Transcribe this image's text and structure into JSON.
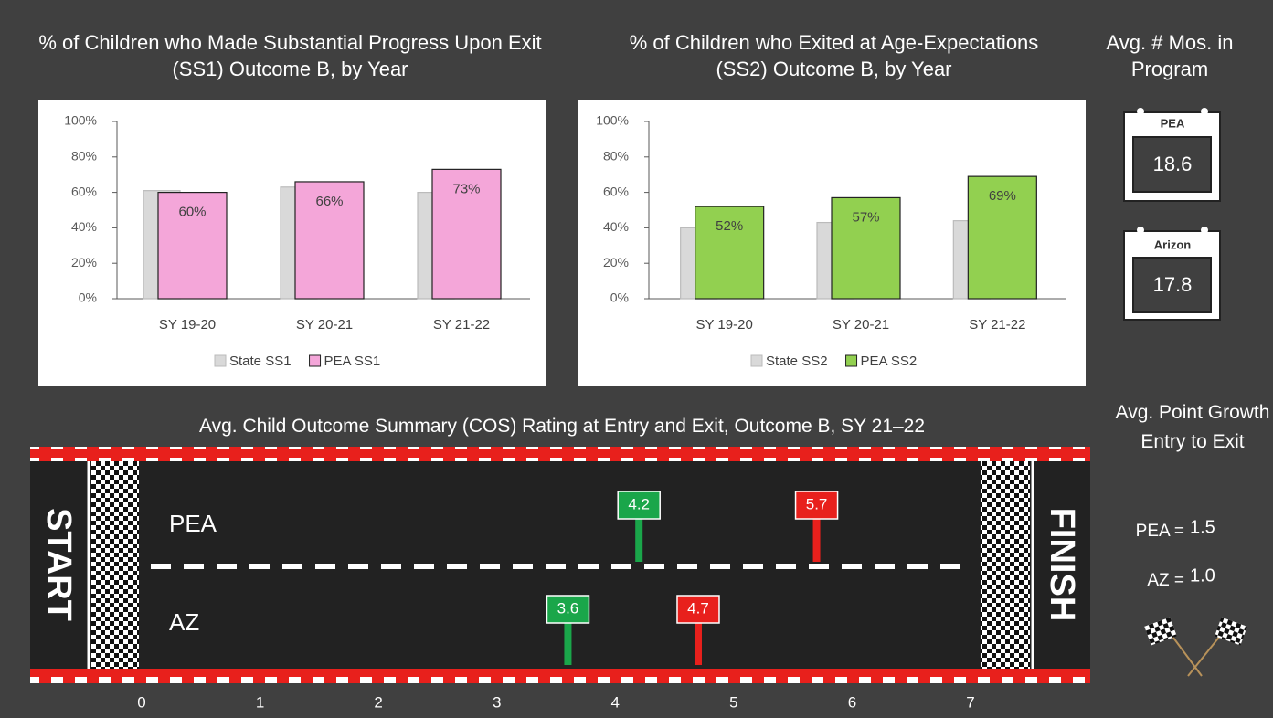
{
  "chart_data": [
    {
      "type": "bar",
      "title": "% of Children who Made Substantial Progress Upon Exit (SS1) Outcome B, by Year",
      "categories": [
        "SY 19-20",
        "SY 20-21",
        "SY 21-22"
      ],
      "series": [
        {
          "name": "State SS1",
          "color": "#d9d9d9",
          "values": [
            61,
            63,
            60
          ]
        },
        {
          "name": "PEA SS1",
          "color": "#f4a6d9",
          "values": [
            60,
            66,
            73
          ],
          "value_labels": [
            "60%",
            "66%",
            "73%"
          ]
        }
      ],
      "ylim": [
        0,
        100
      ],
      "yticks": [
        {
          "value": 0,
          "label": "0%"
        },
        {
          "value": 20,
          "label": "20%"
        },
        {
          "value": 40,
          "label": "40%"
        },
        {
          "value": 60,
          "label": "60%"
        },
        {
          "value": 80,
          "label": "80%"
        },
        {
          "value": 100,
          "label": "100%"
        }
      ]
    },
    {
      "type": "bar",
      "title": "% of Children who Exited at Age-Expectations (SS2) Outcome B, by Year",
      "categories": [
        "SY 19-20",
        "SY 20-21",
        "SY 21-22"
      ],
      "series": [
        {
          "name": "State SS2",
          "color": "#d9d9d9",
          "values": [
            40,
            43,
            44
          ]
        },
        {
          "name": "PEA SS2",
          "color": "#92d050",
          "values": [
            52,
            57,
            69
          ],
          "value_labels": [
            "52%",
            "57%",
            "69%"
          ]
        }
      ],
      "ylim": [
        0,
        100
      ],
      "yticks": [
        {
          "value": 0,
          "label": "0%"
        },
        {
          "value": 20,
          "label": "20%"
        },
        {
          "value": 40,
          "label": "40%"
        },
        {
          "value": 60,
          "label": "60%"
        },
        {
          "value": 80,
          "label": "80%"
        },
        {
          "value": 100,
          "label": "100%"
        }
      ]
    },
    {
      "type": "track",
      "title": "Avg. Child Outcome Summary (COS) Rating at Entry and Exit, Outcome B, SY 21–22",
      "start_label": "START",
      "finish_label": "FINISH",
      "categories": [
        "PEA",
        "AZ"
      ],
      "series": [
        {
          "color": "#1aa64a",
          "values": [
            4.2,
            3.6
          ]
        },
        {
          "color": "#e8201c",
          "values": [
            5.7,
            4.7
          ]
        }
      ],
      "xlim": [
        0,
        7
      ],
      "xticks": [
        0,
        1,
        2,
        3,
        4,
        5,
        6,
        7
      ]
    }
  ],
  "months_panel": {
    "title": "Avg. # Mos. in Program",
    "cards": [
      {
        "label": "PEA",
        "value": "18.6"
      },
      {
        "label": "Arizon",
        "value": "17.8"
      }
    ]
  },
  "growth_panel": {
    "title": "Avg. Point Growth Entry to Exit",
    "rows": [
      {
        "label": "PEA =",
        "value": "1.5"
      },
      {
        "label": "AZ =",
        "value": "1.0"
      }
    ]
  }
}
